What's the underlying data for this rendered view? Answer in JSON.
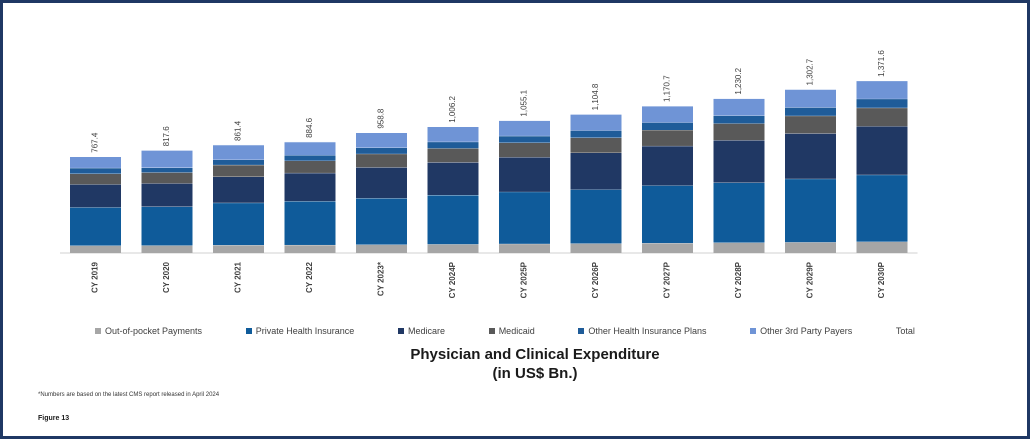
{
  "chart_data": {
    "type": "bar",
    "stacked": true,
    "categories": [
      "CY 2019",
      "CY 2020",
      "CY 2021",
      "CY 2022",
      "CY 2023*",
      "CY 2024P",
      "CY 2025P",
      "CY 2026P",
      "CY 2027P",
      "CY 2028P",
      "CY 2029P",
      "CY 2030P"
    ],
    "totals": [
      "767.4",
      "817.6",
      "861.4",
      "884.6",
      "958.8",
      "1,006.2",
      "1,055.1",
      "1,104.8",
      "1,170.7",
      "1,230.2",
      "1,302.7",
      "1,371.6"
    ],
    "series": [
      {
        "name": "Out-of-pocket Payments",
        "color": "#a6a6a6",
        "values": [
          59,
          60,
          63,
          64,
          67,
          70,
          73,
          76,
          79,
          83,
          86,
          90
        ]
      },
      {
        "name": "Private Health Insurance",
        "color": "#0f5b9a",
        "values": [
          305,
          310,
          337,
          349,
          370,
          392,
          414,
          430,
          459,
          478,
          505,
          533
        ]
      },
      {
        "name": "Medicare",
        "color": "#203864",
        "values": [
          183,
          185,
          208,
          225,
          246,
          261,
          277,
          293,
          315,
          338,
          362,
          387
        ]
      },
      {
        "name": "Medicaid",
        "color": "#595959",
        "values": [
          85,
          87,
          94,
          97,
          107,
          111,
          115,
          120,
          127,
          133,
          140,
          147
        ]
      },
      {
        "name": "Other Health Insurance Plans",
        "color": "#1f5c99",
        "values": [
          46,
          38,
          41,
          44,
          49,
          52,
          54,
          57,
          60,
          63,
          67,
          71
        ]
      },
      {
        "name": "Other 3rd Party Payers",
        "color": "#6f94d6",
        "values": [
          89,
          138,
          118,
          106,
          120,
          120,
          122,
          129,
          131,
          135,
          143,
          144
        ]
      }
    ],
    "legend_extra": "Total",
    "title_line1": "Physician and Clinical Expenditure",
    "title_line2": "(in US$ Bn.)",
    "ylim": [
      0,
      1500
    ],
    "grid": false,
    "legend_position": "bottom"
  },
  "footnote": "*Numbers are based on the latest CMS report released in April 2024",
  "figure_label": "Figure 13"
}
